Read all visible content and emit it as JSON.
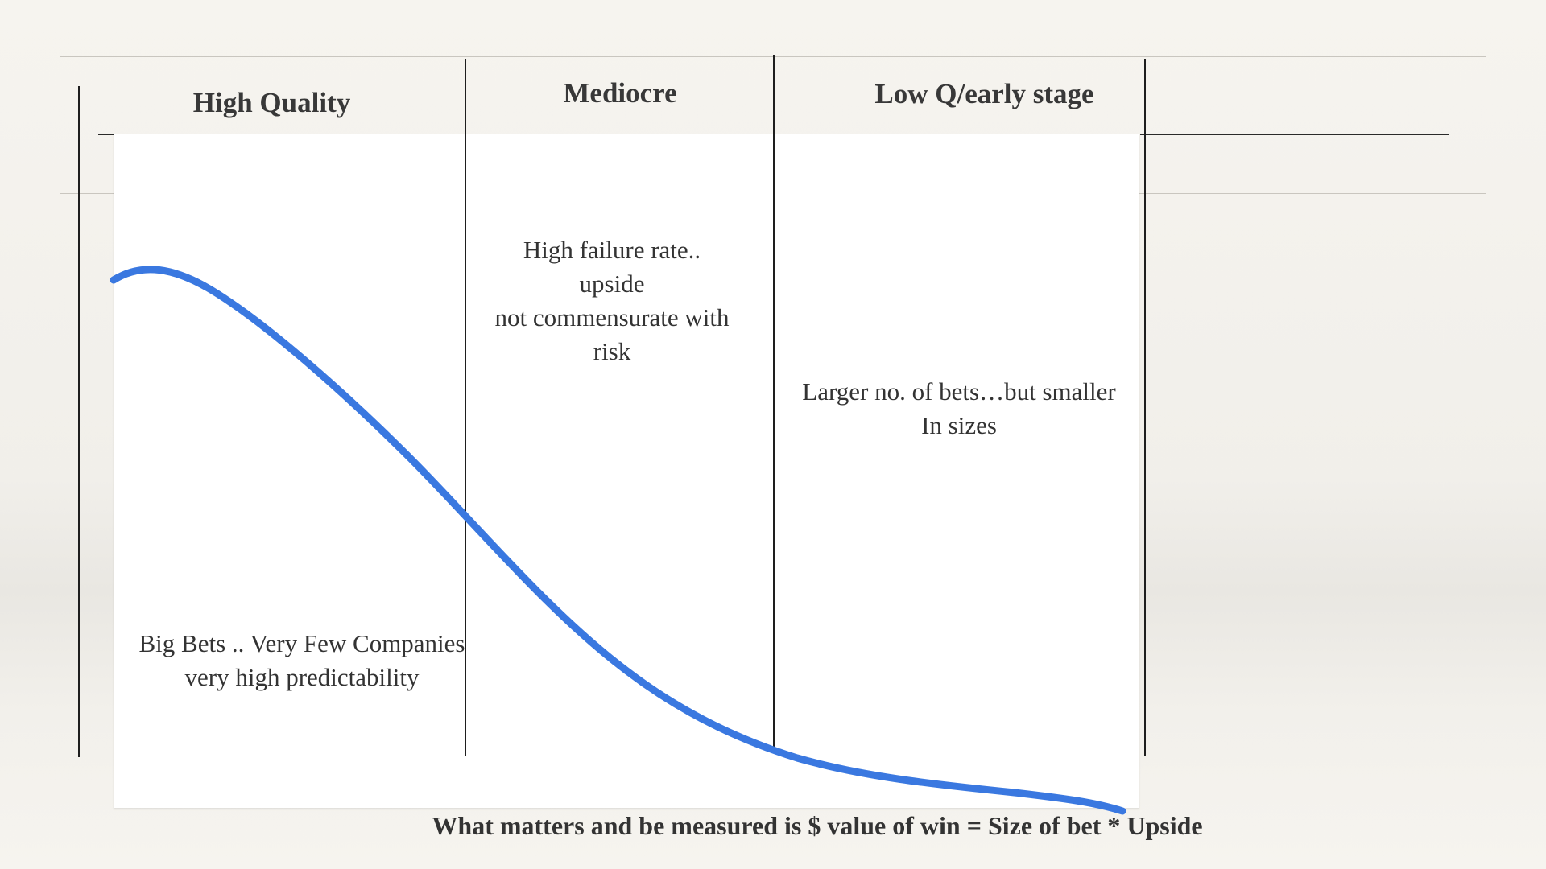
{
  "columns": [
    {
      "label": "High Quality"
    },
    {
      "label": "Mediocre"
    },
    {
      "label": "Low Q/early stage"
    }
  ],
  "notes": {
    "mediocre": [
      "High failure rate..",
      "upside",
      "not commensurate with",
      "risk"
    ],
    "low_q": [
      "Larger no. of bets…but smaller",
      "In sizes"
    ],
    "high_quality": [
      "Big Bets .. Very Few Companies",
      "very high predictability"
    ]
  },
  "footer": "What matters and be measured is $ value of win = Size of bet * Upside",
  "colors": {
    "curve": "#3a78e0",
    "divider": "#1e1e1e",
    "panel": "#ffffff"
  }
}
